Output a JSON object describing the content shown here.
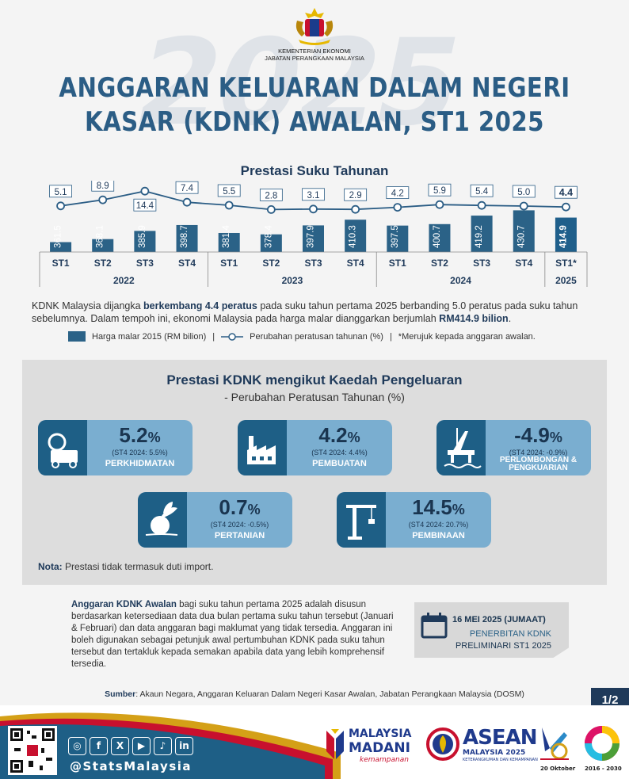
{
  "header": {
    "ministry_line1": "KEMENTERIAN EKONOMI",
    "ministry_line2": "JABATAN PERANGKAAN MALAYSIA",
    "background_year": "2025",
    "title_line1": "ANGGARAN KELUARAN DALAM NEGERI",
    "title_line2": "KASAR (KDNK) AWALAN, ST1 2025"
  },
  "chart_data": {
    "type": "bar",
    "title": "Prestasi Suku Tahunan",
    "categories": [
      "ST1",
      "ST2",
      "ST3",
      "ST4",
      "ST1",
      "ST2",
      "ST3",
      "ST4",
      "ST1",
      "ST2",
      "ST3",
      "ST4",
      "ST1*"
    ],
    "years": [
      {
        "label": "2022",
        "span": 4
      },
      {
        "label": "2023",
        "span": 4
      },
      {
        "label": "2024",
        "span": 4
      },
      {
        "label": "2025",
        "span": 1
      }
    ],
    "series": [
      {
        "name": "Harga malar 2015 (RM bilion)",
        "type": "bar",
        "values": [
          361.5,
          368.1,
          385.9,
          398.7,
          381.4,
          378.4,
          397.9,
          410.3,
          397.5,
          400.7,
          419.2,
          430.7,
          414.9
        ]
      },
      {
        "name": "Perubahan peratusan tahunan (%)",
        "type": "line",
        "values": [
          5.1,
          8.9,
          14.4,
          7.4,
          5.5,
          2.8,
          3.1,
          2.9,
          4.2,
          5.9,
          5.4,
          5.0,
          4.4
        ]
      }
    ],
    "colors": {
      "bar": "#2b6287",
      "line": "#2b5d85",
      "highlight_bar": "#1f5f8b"
    }
  },
  "description": {
    "part1": "KDNK Malaysia dijangka ",
    "bold1": "berkembang 4.4 peratus",
    "part2": " pada suku tahun pertama 2025 berbanding 5.0 peratus pada suku tahun sebelumnya. Dalam tempoh ini, ekonomi Malaysia pada harga malar dianggarkan berjumlah ",
    "bold2": "RM414.9 bilion",
    "part3": "."
  },
  "legend": {
    "bar_label": "Harga malar 2015 (RM bilion)",
    "separator": "|",
    "line_label": "Perubahan peratusan tahunan (%)",
    "note": "*Merujuk kepada anggaran awalan."
  },
  "expenditure": {
    "title": "Prestasi KDNK mengikut Kaedah Pengeluaran",
    "subtitle": "- Perubahan Peratusan Tahunan (%)",
    "cards": [
      {
        "value": "5.2",
        "unit": "%",
        "compare": "(ST4 2024: 5.5%)",
        "label": "PERKHIDMATAN",
        "icon": "services-icon"
      },
      {
        "value": "4.2",
        "unit": "%",
        "compare": "(ST4 2024: 4.4%)",
        "label": "PEMBUATAN",
        "icon": "factory-icon"
      },
      {
        "value": "-4.9",
        "unit": "%",
        "compare": "(ST4 2024: -0.9%)",
        "label": "PERLOMBONGAN & PENGKUARIAN",
        "icon": "oil-rig-icon"
      },
      {
        "value": "0.7",
        "unit": "%",
        "compare": "(ST4 2024: -0.5%)",
        "label": "PERTANIAN",
        "icon": "agriculture-icon"
      },
      {
        "value": "14.5",
        "unit": "%",
        "compare": "(ST4 2024: 20.7%)",
        "label": "PEMBINAAN",
        "icon": "crane-icon"
      }
    ],
    "note_label": "Nota:",
    "note_text": " Prestasi tidak termasuk duti import."
  },
  "methodology": {
    "bold": "Anggaran KDNK Awalan",
    "text": " bagi suku tahun pertama 2025 adalah disusun berdasarkan ketersediaan data dua bulan pertama suku tahun tersebut (Januari & Februari) dan data anggaran bagi maklumat yang tidak tersedia. Anggaran ini boleh digunakan sebagai petunjuk awal pertumbuhan KDNK pada suku tahun tersebut dan tertakluk kepada semakan apabila data yang lebih komprehensif tersedia."
  },
  "publication": {
    "date": "16 MEI 2025 (JUMAAT)",
    "line1": "PENERBITAN KDNK",
    "line2": "PRELIMINARI ST1 2025"
  },
  "source": {
    "label": "Sumber",
    "text": ": Akaun Negara, Anggaran Keluaran Dalam Negeri Kasar Awalan, Jabatan Perangkaan Malaysia (DOSM)"
  },
  "page": "1/2",
  "footer": {
    "handle": "@StatsMalaysia",
    "madani_line1": "MALAYSIA",
    "madani_line2": "MADANI",
    "madani_line3": "kemampanan",
    "asean_line1": "ASEAN",
    "asean_line2": "MALAYSIA 2025",
    "asean_line3": "KETERANGKUMAN DAN KEMAMPANAN",
    "stats_day": "20 Oktober",
    "sdg_years": "2016 - 2030"
  }
}
